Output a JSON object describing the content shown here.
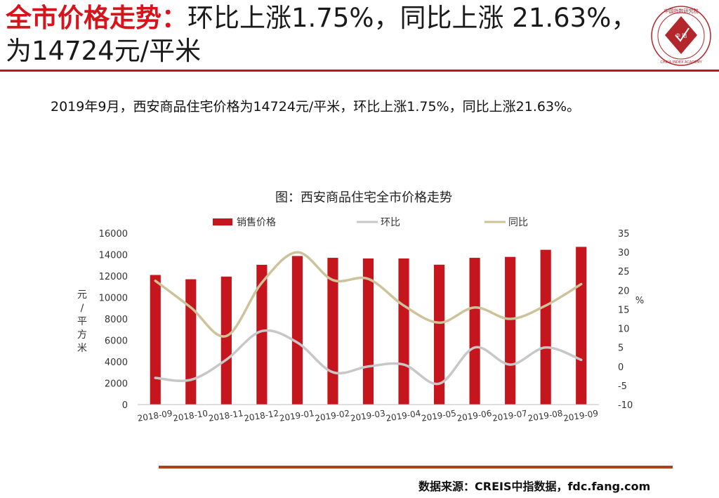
{
  "headline": {
    "lead": "全市价格走势：",
    "rest": "环比上涨1.75%，同比上涨 21.63%，为14724元/平米"
  },
  "logo": {
    "text_top": "中国指数研究院",
    "text_center": "中 指",
    "text_bottom": "CHINA INDEX ACADEMY"
  },
  "summary": "2019年9月，西安商品住宅价格为14724元/平米，环比上涨1.75%，同比上涨21.63%。",
  "source": "数据来源：CREIS中指数据，fdc.fang.com",
  "colors": {
    "accent": "#d7141b",
    "bar": "#c4161c",
    "mom_line": "#c7c7c7",
    "yoy_line": "#cdc29a",
    "footer_rule": "#a8441c"
  },
  "chart_data": {
    "type": "bar",
    "title": "图：西安商品住宅全市价格走势",
    "categories": [
      "2018-09",
      "2018-10",
      "2018-11",
      "2018-12",
      "2019-01",
      "2019-02",
      "2019-03",
      "2019-04",
      "2019-05",
      "2019-06",
      "2019-07",
      "2019-08",
      "2019-09"
    ],
    "series": [
      {
        "name": "销售价格",
        "kind": "bar",
        "axis": "left",
        "values": [
          12100,
          11700,
          11950,
          13050,
          13870,
          13700,
          13640,
          13640,
          13060,
          13700,
          13790,
          14450,
          14724
        ]
      },
      {
        "name": "环比",
        "kind": "line",
        "axis": "right",
        "values": [
          -3,
          -3.5,
          1.8,
          9.3,
          6.3,
          -1.5,
          0,
          0.5,
          -4.5,
          5,
          0.5,
          5,
          1.75
        ]
      },
      {
        "name": "同比",
        "kind": "line",
        "axis": "right",
        "values": [
          22.5,
          15.5,
          8,
          22,
          30,
          22.7,
          23,
          16,
          11.5,
          15.5,
          12.5,
          16,
          21.63
        ]
      }
    ],
    "ylabel_left": "元/平方米",
    "ylabel_right": "%",
    "y_left_range": [
      0,
      16000
    ],
    "y_left_ticks": [
      "0",
      "2000",
      "4000",
      "6000",
      "8000",
      "10000",
      "12000",
      "14000",
      "16000"
    ],
    "y_right_range": [
      -10,
      35
    ],
    "y_right_ticks": [
      "-10",
      "-5",
      "0",
      "5",
      "10",
      "15",
      "20",
      "25",
      "30",
      "35"
    ],
    "legend_position": "top",
    "grid": false
  }
}
